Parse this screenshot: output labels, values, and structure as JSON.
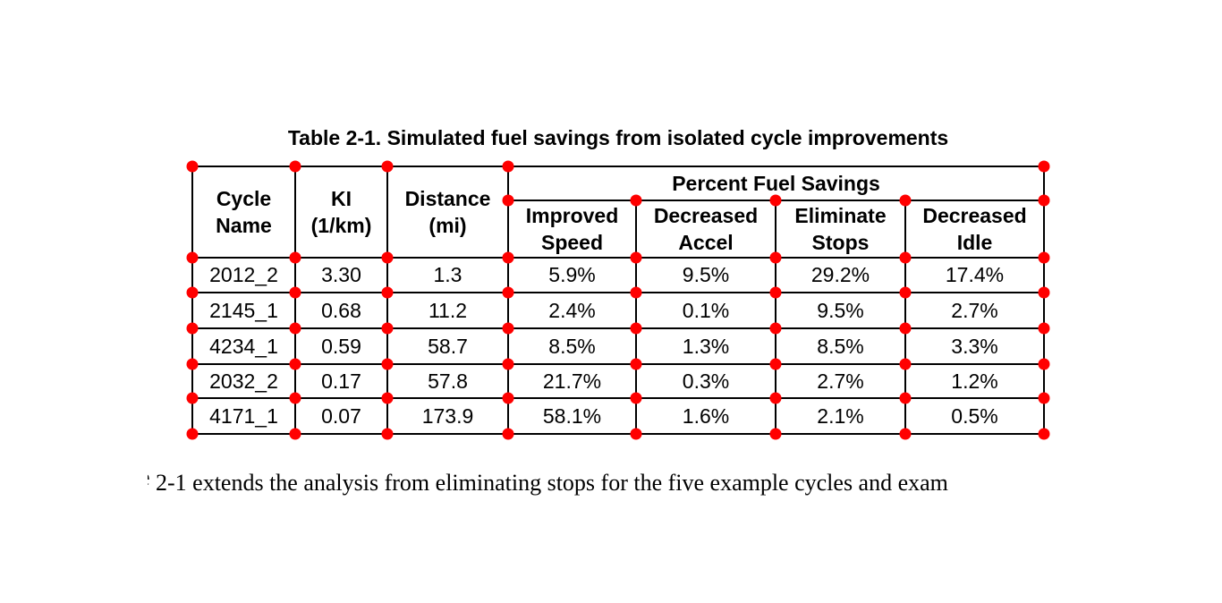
{
  "table": {
    "title": "Table 2-1. Simulated fuel savings from isolated cycle improvements",
    "header": {
      "cycle_name": "Cycle\nName",
      "ki": "KI\n(1/km)",
      "distance": "Distance\n(mi)",
      "group": "Percent Fuel Savings",
      "sub": [
        "Improved\nSpeed",
        "Decreased\nAccel",
        "Eliminate\nStops",
        "Decreased\nIdle"
      ]
    },
    "rows": [
      [
        "2012_2",
        "3.30",
        "1.3",
        "5.9%",
        "9.5%",
        "29.2%",
        "17.4%"
      ],
      [
        "2145_1",
        "0.68",
        "11.2",
        "2.4%",
        "0.1%",
        "9.5%",
        "2.7%"
      ],
      [
        "4234_1",
        "0.59",
        "58.7",
        "8.5%",
        "1.3%",
        "8.5%",
        "3.3%"
      ],
      [
        "2032_2",
        "0.17",
        "57.8",
        "21.7%",
        "0.3%",
        "2.7%",
        "1.2%"
      ],
      [
        "4171_1",
        "0.07",
        "173.9",
        "58.1%",
        "1.6%",
        "2.1%",
        "0.5%"
      ]
    ]
  },
  "caption": {
    "clipped_prefix": "e",
    "text": "2-1 extends the analysis from eliminating stops for the five example cycles and exam"
  },
  "annotations": {
    "dot_color": "#ff0000",
    "dot_count": 58
  },
  "colors": {
    "background": "#ffffff",
    "line": "#000000",
    "text": "#000000"
  }
}
